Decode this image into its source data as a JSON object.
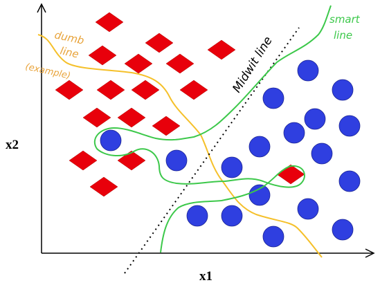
{
  "axes": {
    "x_label": "x1",
    "y_label": "x2"
  },
  "annotations": {
    "dumb_line": [
      "dumb",
      "line",
      "(example)"
    ],
    "midwit_line": "Midwit line",
    "smart_line": [
      "smart",
      "line"
    ]
  }
}
